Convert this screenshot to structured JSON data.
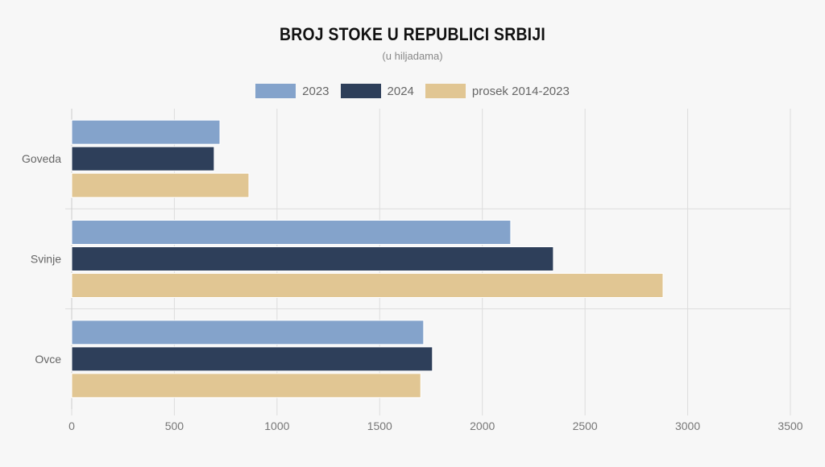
{
  "chart_data": {
    "type": "bar",
    "orientation": "horizontal",
    "title": "BROJ STOKE U REPUBLICI SRBIJI",
    "subtitle": "(u hiljadama)",
    "categories": [
      "Goveda",
      "Svinje",
      "Ovce"
    ],
    "series": [
      {
        "name": "2023",
        "color": "#84a3cb",
        "values": [
          722,
          2138,
          1714
        ]
      },
      {
        "name": "2024",
        "color": "#2e3f5a",
        "values": [
          694,
          2346,
          1757
        ]
      },
      {
        "name": "prosek 2014-2023",
        "color": "#e1c693",
        "values": [
          863,
          2880,
          1700
        ]
      }
    ],
    "xlim": [
      0,
      3500
    ],
    "xticks": [
      "0",
      "500",
      "1000",
      "1500",
      "2000",
      "2500",
      "3000",
      "3500"
    ],
    "grid": true,
    "legend_position": "top-center"
  }
}
